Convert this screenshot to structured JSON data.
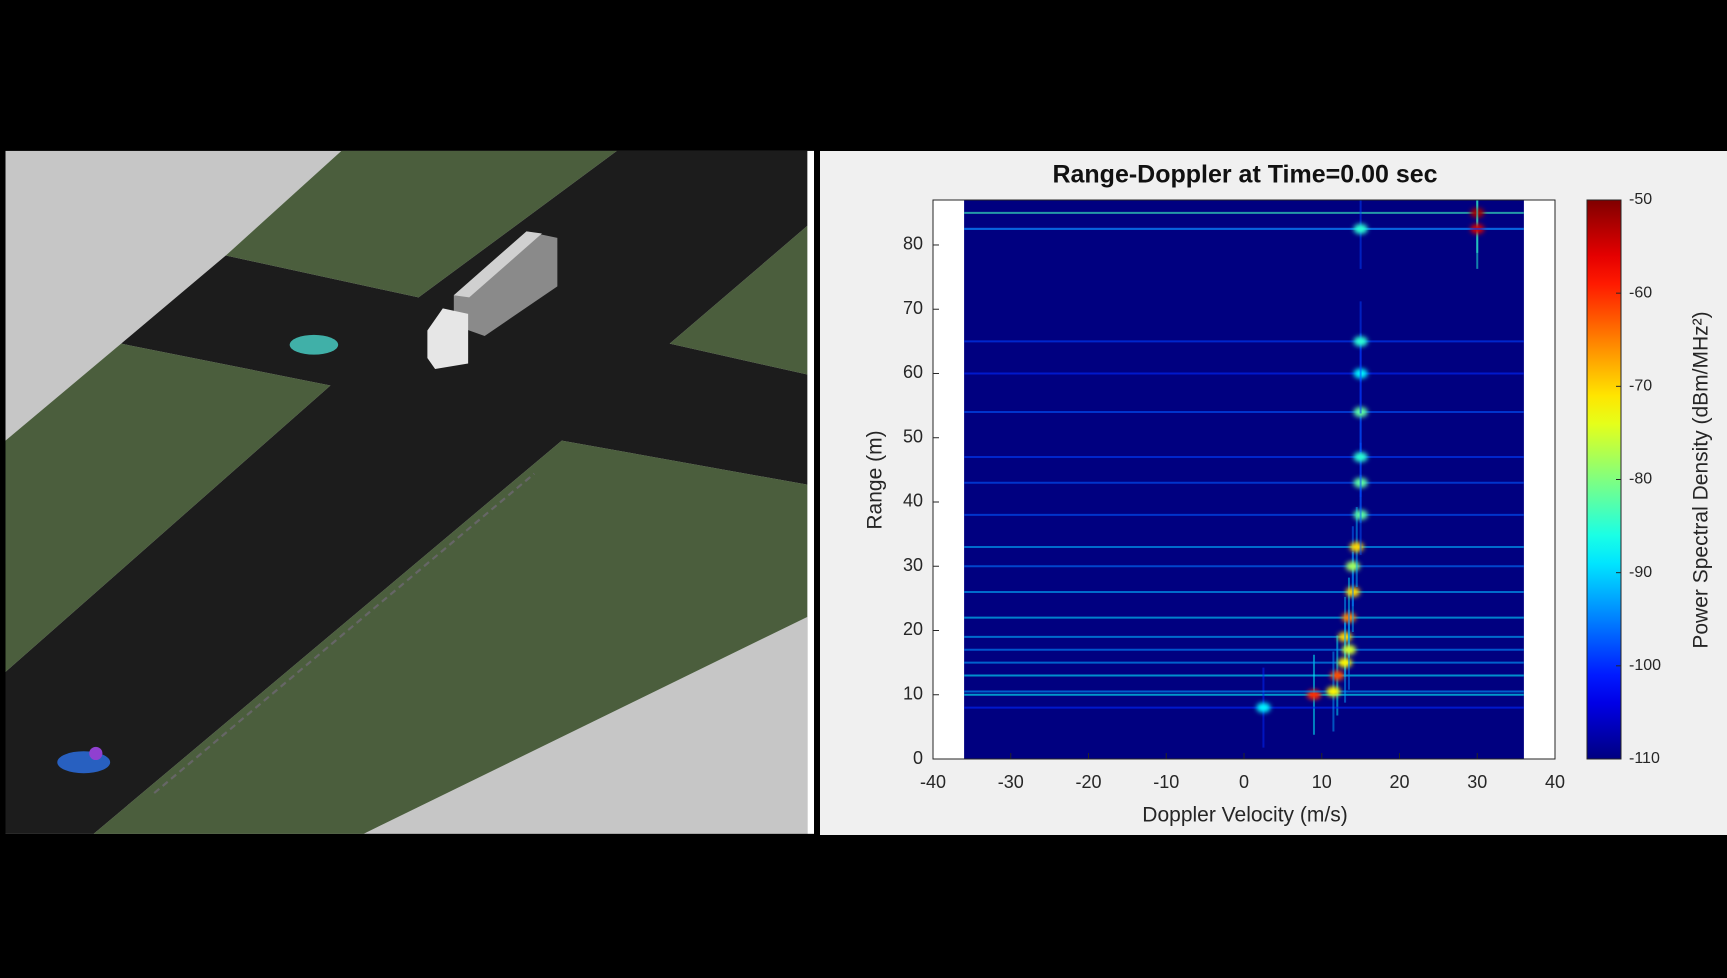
{
  "chart_data": {
    "type": "heatmap",
    "title": "Range-Doppler at Time=0.00 sec",
    "xlabel": "Doppler Velocity (m/s)",
    "ylabel": "Range (m)",
    "colorbar_label": "Power Spectral Density (dBm/MHz²)",
    "colormap": "jet",
    "x": [
      30,
      30,
      15,
      9,
      12,
      13,
      13.5,
      14,
      14,
      14.5,
      15,
      15,
      15,
      15,
      15,
      15,
      2.5,
      11.5,
      13,
      13.5
    ],
    "y": [
      85,
      82.5,
      82.5,
      10,
      13,
      19,
      22,
      26,
      30,
      33,
      38,
      43,
      47,
      54,
      60,
      65,
      8,
      10.5,
      15,
      17
    ],
    "values": [
      -52,
      -55,
      -85,
      -60,
      -62,
      -70,
      -65,
      -70,
      -78,
      -70,
      -82,
      -82,
      -85,
      -82,
      -88,
      -85,
      -88,
      -72,
      -72,
      -75
    ],
    "xextent": [
      -36,
      36
    ],
    "xlim": [
      -40,
      40
    ],
    "xticks": [
      -40,
      -30,
      -20,
      -10,
      0,
      10,
      20,
      30,
      40
    ],
    "ylim": [
      0,
      87
    ],
    "yticks": [
      0,
      10,
      20,
      30,
      40,
      50,
      60,
      70,
      80
    ],
    "clim": [
      -110,
      -50
    ],
    "cticks": [
      -110,
      -100,
      -90,
      -80,
      -70,
      -60,
      -50
    ]
  }
}
